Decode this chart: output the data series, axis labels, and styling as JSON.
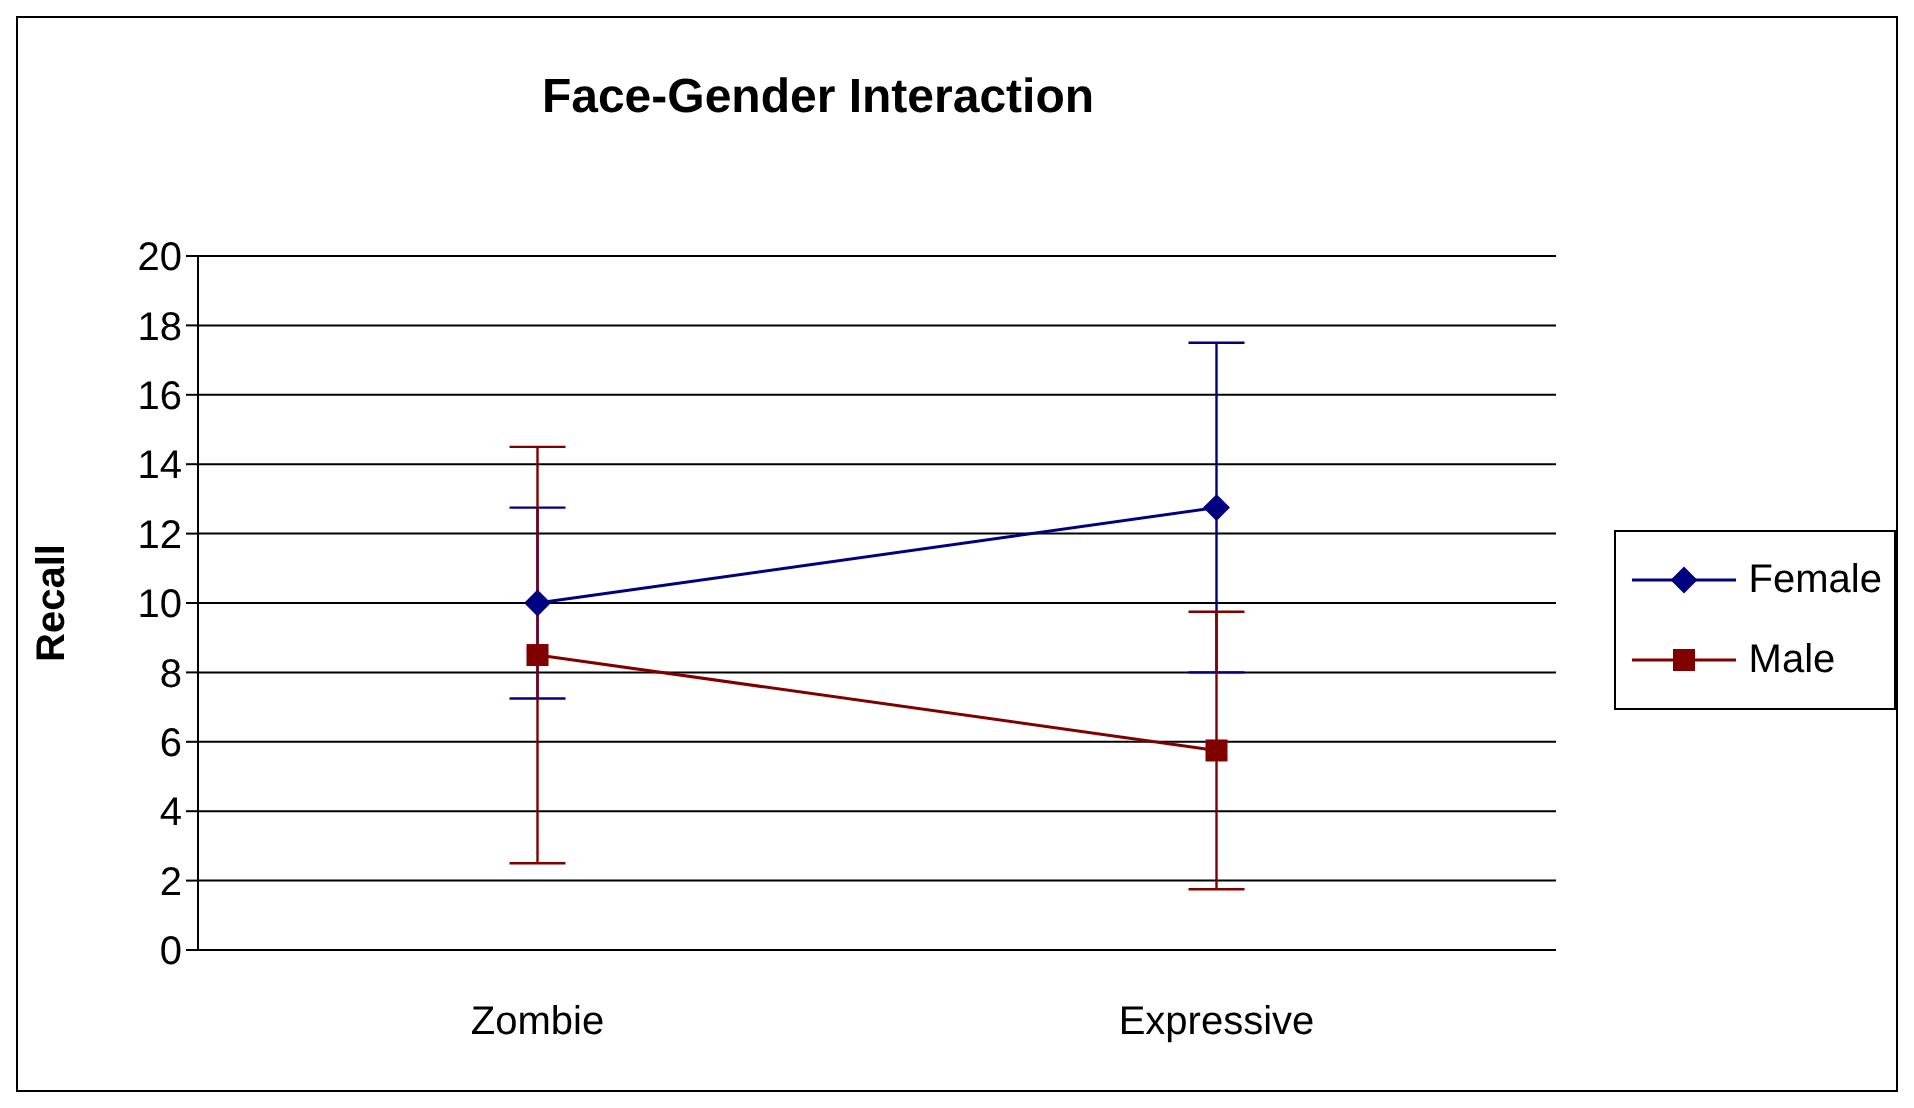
{
  "chart_data": {
    "type": "line",
    "title": "Face-Gender Interaction",
    "ylabel": "Recall",
    "categories": [
      "Zombie",
      "Expressive"
    ],
    "series": [
      {
        "name": "Female",
        "color": "#000080",
        "values": [
          10,
          12.75
        ],
        "errors": [
          2.75,
          4.75
        ],
        "marker": "diamond"
      },
      {
        "name": "Male",
        "color": "#800000",
        "values": [
          8.5,
          5.75
        ],
        "errors": [
          6,
          4
        ],
        "marker": "square"
      }
    ],
    "ylim": [
      0,
      20
    ],
    "yticks": [
      0,
      2,
      4,
      6,
      8,
      10,
      12,
      14,
      16,
      18,
      20
    ],
    "grid": "y",
    "legend": "right",
    "line_style": "solid"
  }
}
